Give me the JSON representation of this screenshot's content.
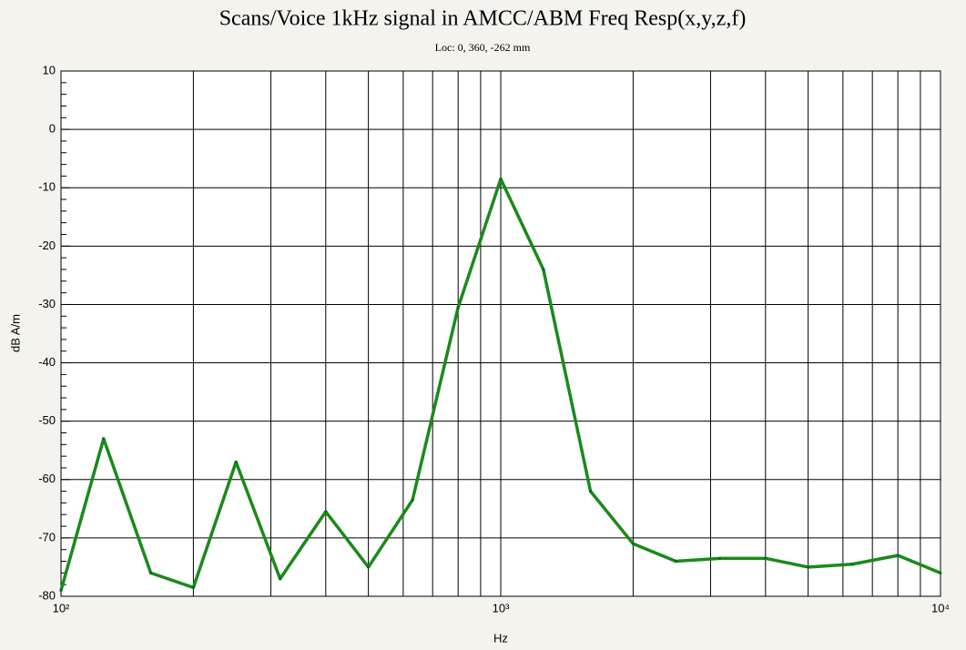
{
  "chart_data": {
    "type": "line",
    "title": "Scans/Voice 1kHz signal in AMCC/ABM Freq Resp(x,y,z,f)",
    "subtitle": "Loc: 0, 360, -262 mm",
    "x_label": "Hz",
    "y_label": "dB A/m",
    "x": [
      100,
      125,
      160,
      200,
      250,
      315,
      400,
      500,
      630,
      800,
      1000,
      1250,
      1600,
      2000,
      2500,
      3150,
      4000,
      5000,
      6300,
      8000,
      10000
    ],
    "series": [
      {
        "color": "#1a8a1a",
        "values": [
          -79,
          -53,
          -76,
          -78.5,
          -57,
          -77,
          -65.5,
          -75,
          -63.5,
          -30.5,
          -8.5,
          -24,
          -62,
          -71,
          -74,
          -73.5,
          -73.5,
          -75,
          -74.5,
          -73,
          -76
        ]
      }
    ],
    "xlim": [
      100,
      10000
    ],
    "x_log": true,
    "xticks": [
      {
        "value": 100,
        "label": "10²"
      },
      {
        "value": 1000,
        "label": "10³"
      },
      {
        "value": 10000,
        "label": "10⁴"
      }
    ],
    "ylim": [
      -80,
      10
    ],
    "yticks": [
      -80,
      -70,
      -60,
      -50,
      -40,
      -30,
      -20,
      -10,
      0,
      10
    ],
    "grid": true
  }
}
